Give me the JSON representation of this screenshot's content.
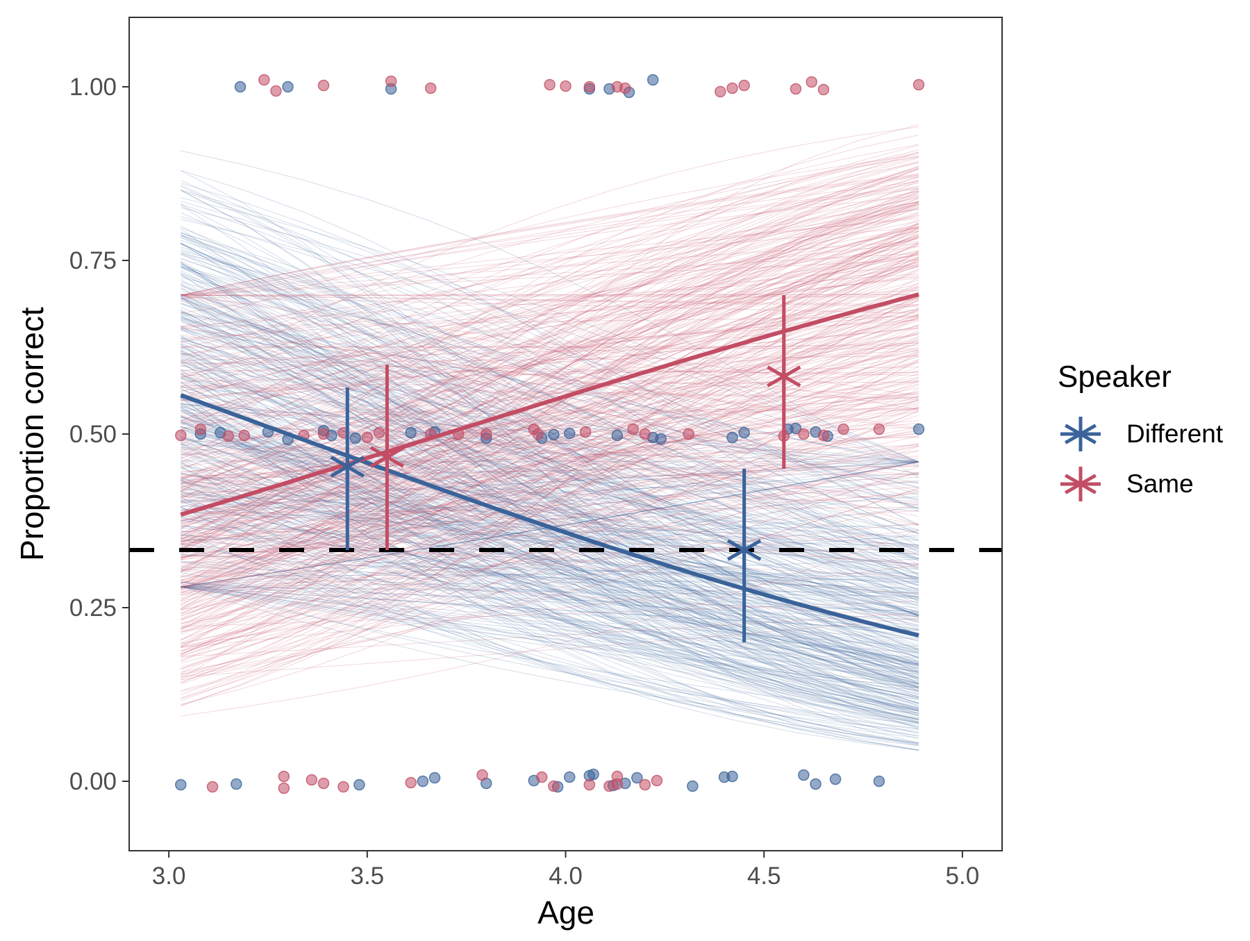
{
  "chart_data": {
    "type": "scatter",
    "xlabel": "Age",
    "ylabel": "Proportion correct",
    "xlim": [
      2.9,
      5.1
    ],
    "ylim": [
      -0.1,
      1.1
    ],
    "xticks": [
      "3.0",
      "3.5",
      "4.0",
      "4.5",
      "5.0"
    ],
    "yticks": [
      "0.00",
      "0.25",
      "0.50",
      "0.75",
      "1.00"
    ],
    "grid": false,
    "legend": {
      "title": "Speaker",
      "placement": "right",
      "entries": [
        "Different",
        "Same"
      ]
    },
    "chance_line": {
      "y": 0.333,
      "style": "dashed",
      "color": "#000000"
    },
    "colors": {
      "Different": "#3a6399",
      "Same": "#c24d64"
    },
    "series": [
      {
        "name": "Different",
        "color": "#3a6399",
        "fit": {
          "x": [
            3.03,
            4.89
          ],
          "y": [
            0.556,
            0.21
          ]
        },
        "posterior_draws_band": {
          "at_x_min": [
            0.3,
            0.97
          ],
          "at_x_max": [
            0.0,
            0.45
          ]
        },
        "group_means": [
          {
            "x": 3.45,
            "y": 0.453,
            "ci": [
              0.333,
              0.567
            ]
          },
          {
            "x": 4.45,
            "y": 0.333,
            "ci": [
              0.2,
              0.45
            ]
          }
        ],
        "points": [
          [
            3.18,
            1.0
          ],
          [
            3.3,
            1.0
          ],
          [
            3.56,
            0.997
          ],
          [
            4.06,
            0.997
          ],
          [
            4.11,
            0.997
          ],
          [
            4.16,
            0.992
          ],
          [
            4.22,
            1.01
          ],
          [
            3.08,
            0.5
          ],
          [
            3.13,
            0.502
          ],
          [
            3.25,
            0.503
          ],
          [
            3.3,
            0.492
          ],
          [
            3.39,
            0.505
          ],
          [
            3.41,
            0.498
          ],
          [
            3.47,
            0.494
          ],
          [
            3.61,
            0.502
          ],
          [
            3.67,
            0.503
          ],
          [
            3.8,
            0.494
          ],
          [
            3.94,
            0.494
          ],
          [
            3.97,
            0.499
          ],
          [
            4.01,
            0.501
          ],
          [
            4.13,
            0.498
          ],
          [
            4.22,
            0.495
          ],
          [
            4.24,
            0.493
          ],
          [
            4.42,
            0.495
          ],
          [
            4.45,
            0.502
          ],
          [
            4.56,
            0.507
          ],
          [
            4.58,
            0.508
          ],
          [
            4.63,
            0.503
          ],
          [
            4.66,
            0.497
          ],
          [
            4.89,
            0.507
          ],
          [
            3.03,
            -0.005
          ],
          [
            3.17,
            -0.004
          ],
          [
            3.48,
            -0.005
          ],
          [
            3.64,
            0.0
          ],
          [
            3.67,
            0.005
          ],
          [
            3.8,
            -0.003
          ],
          [
            3.92,
            0.001
          ],
          [
            3.98,
            -0.008
          ],
          [
            4.01,
            0.006
          ],
          [
            4.06,
            0.008
          ],
          [
            4.07,
            0.01
          ],
          [
            4.12,
            -0.006
          ],
          [
            4.15,
            -0.003
          ],
          [
            4.18,
            0.005
          ],
          [
            4.32,
            -0.007
          ],
          [
            4.4,
            0.006
          ],
          [
            4.42,
            0.007
          ],
          [
            4.6,
            0.009
          ],
          [
            4.63,
            -0.004
          ],
          [
            4.68,
            0.003
          ],
          [
            4.79,
            0.0
          ]
        ]
      },
      {
        "name": "Same",
        "color": "#c24d64",
        "fit": {
          "x": [
            3.03,
            4.89
          ],
          "y": [
            0.384,
            0.701
          ]
        },
        "posterior_draws_band": {
          "at_x_min": [
            0.03,
            0.7
          ],
          "at_x_max": [
            0.3,
            0.98
          ]
        },
        "group_means": [
          {
            "x": 3.55,
            "y": 0.467,
            "ci": [
              0.333,
              0.6
            ]
          },
          {
            "x": 4.55,
            "y": 0.583,
            "ci": [
              0.45,
              0.7
            ]
          }
        ],
        "points": [
          [
            3.24,
            1.01
          ],
          [
            3.27,
            0.994
          ],
          [
            3.39,
            1.002
          ],
          [
            3.56,
            1.008
          ],
          [
            3.66,
            0.998
          ],
          [
            3.96,
            1.003
          ],
          [
            4.0,
            1.001
          ],
          [
            4.06,
            1.0
          ],
          [
            4.13,
            1.0
          ],
          [
            4.15,
            0.998
          ],
          [
            4.39,
            0.993
          ],
          [
            4.42,
            0.998
          ],
          [
            4.45,
            1.002
          ],
          [
            4.58,
            0.997
          ],
          [
            4.62,
            1.007
          ],
          [
            4.65,
            0.996
          ],
          [
            4.89,
            1.003
          ],
          [
            3.03,
            0.498
          ],
          [
            3.08,
            0.507
          ],
          [
            3.15,
            0.497
          ],
          [
            3.19,
            0.498
          ],
          [
            3.34,
            0.498
          ],
          [
            3.39,
            0.5
          ],
          [
            3.44,
            0.502
          ],
          [
            3.5,
            0.495
          ],
          [
            3.53,
            0.502
          ],
          [
            3.66,
            0.5
          ],
          [
            3.73,
            0.5
          ],
          [
            3.8,
            0.5
          ],
          [
            3.92,
            0.507
          ],
          [
            3.93,
            0.5
          ],
          [
            4.05,
            0.503
          ],
          [
            4.17,
            0.507
          ],
          [
            4.2,
            0.5
          ],
          [
            4.31,
            0.5
          ],
          [
            4.55,
            0.497
          ],
          [
            4.6,
            0.5
          ],
          [
            4.65,
            0.498
          ],
          [
            4.7,
            0.507
          ],
          [
            4.79,
            0.507
          ],
          [
            3.11,
            -0.008
          ],
          [
            3.29,
            0.007
          ],
          [
            3.29,
            -0.01
          ],
          [
            3.36,
            0.002
          ],
          [
            3.39,
            -0.003
          ],
          [
            3.44,
            -0.008
          ],
          [
            3.61,
            -0.002
          ],
          [
            3.79,
            0.009
          ],
          [
            3.94,
            0.006
          ],
          [
            3.97,
            -0.007
          ],
          [
            4.06,
            -0.005
          ],
          [
            4.11,
            -0.007
          ],
          [
            4.13,
            0.007
          ],
          [
            4.13,
            -0.004
          ],
          [
            4.2,
            -0.005
          ],
          [
            4.23,
            0.001
          ]
        ]
      }
    ]
  }
}
